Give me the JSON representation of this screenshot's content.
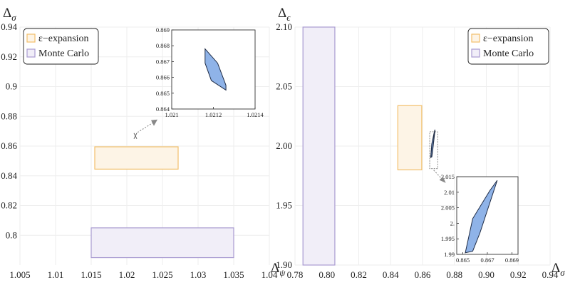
{
  "colors": {
    "epsilon_fill": "#fdf4e6",
    "epsilon_stroke": "#f2bf6a",
    "mc_fill": "#f1eef8",
    "mc_stroke": "#a99bd1",
    "island_fill": "#8fb3e8",
    "island_stroke": "#1d2a44",
    "grid": "#eeeeee",
    "arrow": "#888888"
  },
  "legend_labels": [
    "ε−expansion",
    "Monte Carlo"
  ],
  "chart_data": [
    {
      "type": "rectangles",
      "xlabel": "Δ_ψ",
      "ylabel": "Δ_σ",
      "xlim": [
        1.005,
        1.04
      ],
      "ylim": [
        0.78,
        0.94
      ],
      "xticks": [
        1.005,
        1.01,
        1.015,
        1.02,
        1.025,
        1.03,
        1.035,
        1.04
      ],
      "xtick_labels": [
        "1.005",
        "1.01",
        "1.015",
        "1.02",
        "1.025",
        "1.03",
        "1.035",
        "1.04"
      ],
      "yticks": [
        0.8,
        0.82,
        0.84,
        0.86,
        0.88,
        0.9,
        0.92,
        0.94
      ],
      "ytick_labels": [
        "0.8",
        "0.82",
        "0.84",
        "0.86",
        "0.88",
        "0.9",
        "0.92",
        "0.94"
      ],
      "grid": true,
      "legend_position": "top-left",
      "legend": [
        "ε−expansion",
        "Monte Carlo"
      ],
      "series": [
        {
          "name": "ε−expansion",
          "x_range": [
            1.0155,
            1.0272
          ],
          "y_range": [
            0.8445,
            0.8595
          ]
        },
        {
          "name": "Monte Carlo",
          "x_range": [
            1.015,
            1.035
          ],
          "y_range": [
            0.785,
            0.805
          ]
        }
      ],
      "inset": {
        "xlim": [
          1.021,
          1.0214
        ],
        "ylim": [
          0.864,
          0.869
        ],
        "xticks": [
          1.021,
          1.0212,
          1.0214
        ],
        "xtick_labels": [
          "1.021",
          "1.0212",
          "1.0214"
        ],
        "yticks": [
          0.864,
          0.865,
          0.866,
          0.867,
          0.868,
          0.869
        ],
        "ytick_labels": [
          "0.864",
          "0.865",
          "0.866",
          "0.867",
          "0.868",
          "0.869"
        ],
        "island": [
          [
            1.02116,
            0.8678
          ],
          [
            1.02122,
            0.8669
          ],
          [
            1.02126,
            0.8655
          ],
          [
            1.02126,
            0.8652
          ],
          [
            1.02119,
            0.8658
          ],
          [
            1.02116,
            0.8669
          ]
        ],
        "marker": [
          1.0212,
          0.8668
        ]
      }
    },
    {
      "type": "rectangles",
      "xlabel": "Δ_σ",
      "ylabel": "Δ_ϵ",
      "xlim": [
        0.78,
        0.94
      ],
      "ylim": [
        1.9,
        2.1
      ],
      "xticks": [
        0.78,
        0.8,
        0.82,
        0.84,
        0.86,
        0.88,
        0.9,
        0.92,
        0.94
      ],
      "xtick_labels": [
        "0.78",
        "0.80",
        "0.82",
        "0.84",
        "0.86",
        "0.88",
        "0.90",
        "0.92",
        "0.94"
      ],
      "yticks": [
        1.9,
        1.95,
        2.0,
        2.05,
        2.1
      ],
      "ytick_labels": [
        "1.90",
        "1.95",
        "2.00",
        "2.05",
        "2.10"
      ],
      "grid": true,
      "legend_position": "top-right",
      "legend": [
        "ε−expansion",
        "Monte Carlo"
      ],
      "series": [
        {
          "name": "ε−expansion",
          "x_range": [
            0.8445,
            0.8595
          ],
          "y_range": [
            1.98,
            2.034
          ]
        },
        {
          "name": "Monte Carlo",
          "x_range": [
            0.785,
            0.805
          ],
          "y_range": [
            1.9,
            2.1
          ]
        }
      ],
      "inset": {
        "xlim": [
          0.8645,
          0.8695
        ],
        "ylim": [
          1.99,
          2.015
        ],
        "xticks": [
          0.865,
          0.867,
          0.869
        ],
        "xtick_labels": [
          "0.865",
          "0.867",
          "0.869"
        ],
        "yticks": [
          1.99,
          1.995,
          2.0,
          2.005,
          2.01,
          2.015
        ],
        "ytick_labels": [
          "1.99",
          "1.995",
          "2.",
          "2.005",
          "2.01",
          "2.015"
        ],
        "island": [
          [
            0.8652,
            1.9905
          ],
          [
            0.8658,
            1.991
          ],
          [
            0.8664,
            1.997
          ],
          [
            0.8678,
            2.0138
          ],
          [
            0.8672,
            2.0105
          ],
          [
            0.8658,
            2.0015
          ]
        ],
        "marker_box_x": [
          0.8645,
          0.8695
        ],
        "marker_box_y": [
          1.981,
          2.012
        ]
      }
    }
  ]
}
